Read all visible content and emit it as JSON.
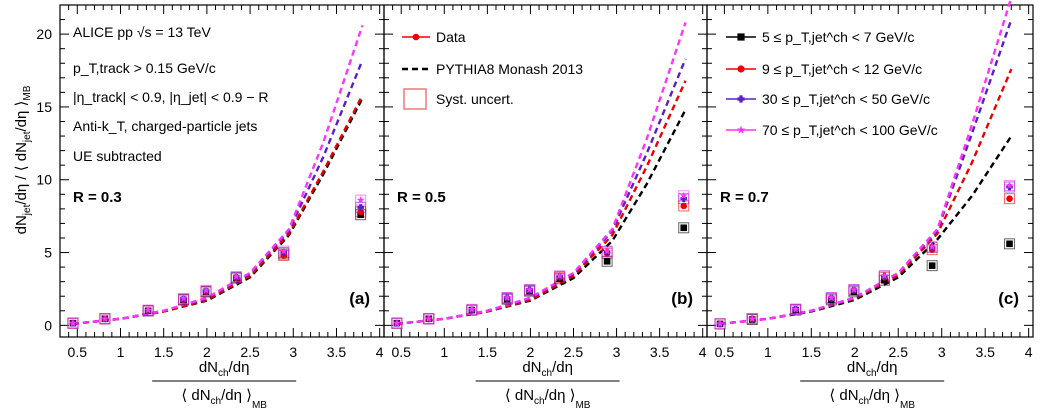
{
  "figure": {
    "ylabel": {
      "num": "dN",
      "num_sub": "jet",
      "num_tail": "/dη / ⟨ dN",
      "den_sub": "jet",
      "den_tail": "/dη ⟩",
      "mb": "MB"
    },
    "xlabel": {
      "top": "dN",
      "top_sub": "ch",
      "top_tail": "/dη",
      "bottom": "⟨ dN",
      "bottom_sub": "ch",
      "bottom_tail": "/dη ⟩",
      "mb": "MB"
    }
  },
  "colors": {
    "black": "#000000",
    "red": "#ee0000",
    "purple": "#5a1fc7",
    "magenta": "#ff33ff",
    "syst": "#f08080"
  },
  "annotations": {
    "line1": "ALICE pp √s = 13 TeV",
    "line2": "p_T,track > 0.15 GeV/c",
    "line3": "|η_track| < 0.9, |η_jet| < 0.9 − R",
    "line4": "Anti-k_T, charged-particle jets",
    "line5": "UE subtracted"
  },
  "legend_data": [
    {
      "label": "Data",
      "style": "marker-line",
      "color": "red"
    },
    {
      "label": "PYTHIA8 Monash 2013",
      "style": "dashed",
      "color": "black"
    },
    {
      "label": "Syst. uncert.",
      "style": "box",
      "color": "syst"
    }
  ],
  "legend_ranges": [
    {
      "label": "5 ≤ p_T,jet^ch < 7 GeV/c",
      "color": "black",
      "marker": "square"
    },
    {
      "label": "9 ≤ p_T,jet^ch < 12 GeV/c",
      "color": "red",
      "marker": "circle"
    },
    {
      "label": "30 ≤ p_T,jet^ch < 50 GeV/c",
      "color": "purple",
      "marker": "cross"
    },
    {
      "label": "70 ≤ p_T,jet^ch < 100 GeV/c",
      "color": "magenta",
      "marker": "star"
    }
  ],
  "chart_data": [
    {
      "type": "scatter",
      "panel_label": "(a)",
      "radius_label": "R = 0.3",
      "xlim": [
        0.3,
        4.05
      ],
      "ylim": [
        -0.8,
        22
      ],
      "x_ticks": [
        "0.5",
        "1",
        "1.5",
        "2",
        "2.5",
        "3",
        "3.5",
        "4"
      ],
      "y_ticks": [
        "0",
        "5",
        "10",
        "15",
        "20"
      ],
      "x": [
        0.45,
        0.82,
        1.32,
        1.73,
        1.99,
        2.34,
        2.89,
        3.78
      ],
      "series": [
        {
          "range": "5-7",
          "color": "black",
          "marker": "square",
          "values": [
            0.15,
            0.45,
            1.0,
            1.75,
            2.3,
            3.25,
            4.9,
            7.6
          ]
        },
        {
          "range": "9-12",
          "color": "red",
          "marker": "circle",
          "values": [
            0.15,
            0.45,
            1.0,
            1.75,
            2.3,
            3.25,
            4.8,
            7.8
          ]
        },
        {
          "range": "30-50",
          "color": "purple",
          "marker": "cross",
          "values": [
            0.15,
            0.45,
            1.0,
            1.8,
            2.35,
            3.3,
            5.0,
            8.1
          ]
        },
        {
          "range": "70-100",
          "color": "magenta",
          "marker": "star",
          "values": [
            0.15,
            0.45,
            1.05,
            1.85,
            2.4,
            3.35,
            5.1,
            8.6
          ]
        }
      ],
      "model": [
        {
          "range": "5-7",
          "color": "black",
          "x": [
            0.45,
            1.0,
            1.5,
            2.0,
            2.5,
            2.95,
            3.35,
            3.8
          ],
          "y": [
            0.1,
            0.45,
            0.95,
            1.7,
            3.3,
            6.2,
            10.4,
            15.6
          ]
        },
        {
          "range": "9-12",
          "color": "red",
          "x": [
            0.45,
            1.0,
            1.5,
            2.0,
            2.5,
            2.95,
            3.35,
            3.8
          ],
          "y": [
            0.1,
            0.45,
            0.95,
            1.75,
            3.4,
            6.3,
            10.6,
            15.8
          ]
        },
        {
          "range": "30-50",
          "color": "purple",
          "x": [
            0.45,
            1.0,
            1.5,
            2.0,
            2.5,
            2.95,
            3.35,
            3.8
          ],
          "y": [
            0.1,
            0.45,
            1.0,
            1.85,
            3.55,
            6.5,
            11.6,
            18.2
          ]
        },
        {
          "range": "70-100",
          "color": "magenta",
          "x": [
            0.45,
            1.0,
            1.5,
            2.0,
            2.5,
            2.95,
            3.35,
            3.8
          ],
          "y": [
            0.1,
            0.45,
            1.0,
            1.9,
            3.6,
            6.6,
            12.6,
            20.6
          ]
        }
      ]
    },
    {
      "type": "scatter",
      "panel_label": "(b)",
      "radius_label": "R = 0.5",
      "xlim": [
        0.3,
        4.05
      ],
      "ylim": [
        -0.8,
        22
      ],
      "x_ticks": [
        "0.5",
        "1",
        "1.5",
        "2",
        "2.5",
        "3",
        "3.5",
        "4"
      ],
      "y_ticks": [],
      "x": [
        0.45,
        0.82,
        1.32,
        1.73,
        1.99,
        2.34,
        2.89,
        3.78
      ],
      "series": [
        {
          "range": "5-7",
          "color": "black",
          "marker": "square",
          "values": [
            0.15,
            0.45,
            1.05,
            1.8,
            2.35,
            3.2,
            4.4,
            6.7
          ]
        },
        {
          "range": "9-12",
          "color": "red",
          "marker": "circle",
          "values": [
            0.15,
            0.45,
            1.05,
            1.85,
            2.4,
            3.3,
            4.95,
            8.2
          ]
        },
        {
          "range": "30-50",
          "color": "purple",
          "marker": "cross",
          "values": [
            0.15,
            0.45,
            1.05,
            1.9,
            2.45,
            3.35,
            5.05,
            8.7
          ]
        },
        {
          "range": "70-100",
          "color": "magenta",
          "marker": "star",
          "values": [
            0.15,
            0.45,
            1.1,
            1.9,
            2.45,
            3.4,
            5.1,
            8.9
          ]
        }
      ],
      "model": [
        {
          "range": "5-7",
          "color": "black",
          "x": [
            0.45,
            1.0,
            1.5,
            2.0,
            2.5,
            2.95,
            3.35,
            3.8
          ],
          "y": [
            0.1,
            0.45,
            0.95,
            1.7,
            3.25,
            5.8,
            9.7,
            14.8
          ]
        },
        {
          "range": "9-12",
          "color": "red",
          "x": [
            0.45,
            1.0,
            1.5,
            2.0,
            2.5,
            2.95,
            3.35,
            3.8
          ],
          "y": [
            0.1,
            0.45,
            0.95,
            1.75,
            3.4,
            6.2,
            10.9,
            16.8
          ]
        },
        {
          "range": "30-50",
          "color": "purple",
          "x": [
            0.45,
            1.0,
            1.5,
            2.0,
            2.5,
            2.95,
            3.35,
            3.8
          ],
          "y": [
            0.1,
            0.45,
            1.0,
            1.85,
            3.55,
            6.5,
            11.8,
            18.3
          ]
        },
        {
          "range": "70-100",
          "color": "magenta",
          "x": [
            0.45,
            1.0,
            1.5,
            2.0,
            2.5,
            2.95,
            3.35,
            3.8
          ],
          "y": [
            0.1,
            0.45,
            1.0,
            1.9,
            3.6,
            6.6,
            12.8,
            20.8
          ]
        }
      ]
    },
    {
      "type": "scatter",
      "panel_label": "(c)",
      "radius_label": "R = 0.7",
      "xlim": [
        0.3,
        4.05
      ],
      "ylim": [
        -0.8,
        22
      ],
      "x_ticks": [
        "0.5",
        "1",
        "1.5",
        "2",
        "2.5",
        "3",
        "3.5",
        "4"
      ],
      "y_ticks": [],
      "x": [
        0.45,
        0.82,
        1.32,
        1.73,
        1.99,
        2.34,
        2.89,
        3.78
      ],
      "series": [
        {
          "range": "5-7",
          "color": "black",
          "marker": "square",
          "values": [
            0.1,
            0.4,
            1.05,
            1.75,
            2.3,
            3.1,
            4.1,
            5.6
          ]
        },
        {
          "range": "9-12",
          "color": "red",
          "marker": "circle",
          "values": [
            0.1,
            0.45,
            1.1,
            1.85,
            2.4,
            3.3,
            5.2,
            8.7
          ]
        },
        {
          "range": "30-50",
          "color": "purple",
          "marker": "cross",
          "values": [
            0.1,
            0.45,
            1.1,
            1.9,
            2.45,
            3.4,
            5.35,
            9.5
          ]
        },
        {
          "range": "70-100",
          "color": "magenta",
          "marker": "star",
          "values": [
            0.1,
            0.45,
            1.1,
            1.9,
            2.45,
            3.4,
            5.4,
            9.6
          ]
        }
      ],
      "model": [
        {
          "range": "5-7",
          "color": "black",
          "x": [
            0.45,
            1.0,
            1.5,
            2.0,
            2.5,
            2.95,
            3.35,
            3.8
          ],
          "y": [
            0.1,
            0.45,
            0.95,
            1.75,
            3.3,
            5.9,
            8.9,
            13.0
          ]
        },
        {
          "range": "9-12",
          "color": "red",
          "x": [
            0.45,
            1.0,
            1.5,
            2.0,
            2.5,
            2.95,
            3.35,
            3.8
          ],
          "y": [
            0.1,
            0.45,
            1.0,
            1.85,
            3.45,
            6.3,
            11.2,
            17.6
          ]
        },
        {
          "range": "30-50",
          "color": "purple",
          "x": [
            0.45,
            1.0,
            1.5,
            2.0,
            2.5,
            2.95,
            3.35,
            3.8
          ],
          "y": [
            0.1,
            0.45,
            1.0,
            1.9,
            3.6,
            6.5,
            13.2,
            21.0
          ]
        },
        {
          "range": "70-100",
          "color": "magenta",
          "x": [
            0.45,
            1.0,
            1.5,
            2.0,
            2.5,
            2.95,
            3.35,
            3.8
          ],
          "y": [
            0.1,
            0.45,
            1.0,
            1.9,
            3.6,
            6.6,
            13.8,
            22.5
          ]
        }
      ]
    }
  ]
}
